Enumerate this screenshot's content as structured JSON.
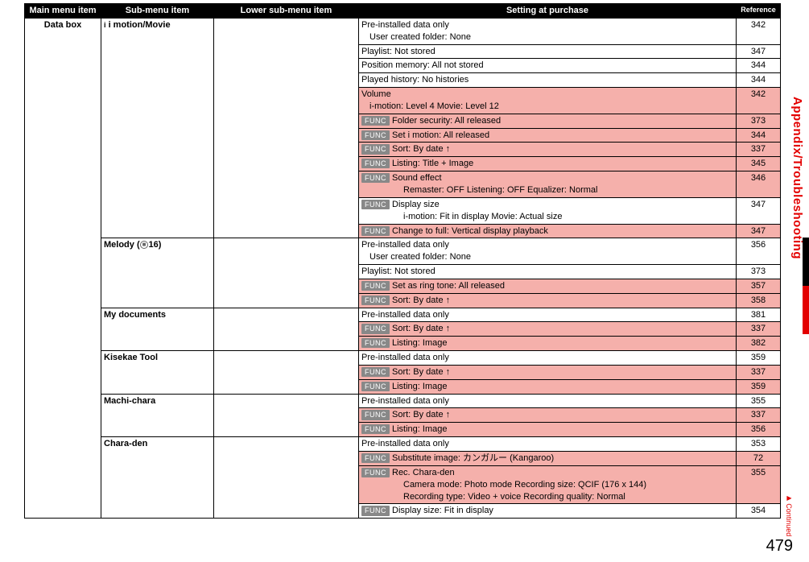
{
  "headers": {
    "main": "Main menu item",
    "sub": "Sub-menu item",
    "low": "Lower sub-menu item",
    "set": "Setting at purchase",
    "ref": "Reference"
  },
  "data_box_label": "Data box",
  "sections": [
    {
      "sub": "i motion/Movie",
      "sub_has_icon": true,
      "rows": [
        {
          "setting_lines": [
            "Pre-installed data only",
            "  User created folder: None"
          ],
          "ref": "342"
        },
        {
          "setting": "Playlist: Not stored",
          "ref": "347"
        },
        {
          "setting": "Position memory: All not stored",
          "ref": "344"
        },
        {
          "setting": "Played history: No histories",
          "ref": "344"
        },
        {
          "pink": true,
          "setting_lines": [
            "Volume",
            "  i-motion: Level 4                               Movie: Level 12"
          ],
          "ref": "342"
        },
        {
          "pink": true,
          "func": true,
          "setting": "Folder security: All released",
          "ref": "373"
        },
        {
          "pink": true,
          "func": true,
          "setting": "Set  i motion: All released",
          "ref": "344"
        },
        {
          "pink": true,
          "func": true,
          "setting": "Sort: By date ↑",
          "ref": "337"
        },
        {
          "pink": true,
          "func": true,
          "setting": "Listing: Title + Image",
          "ref": "345"
        },
        {
          "pink": true,
          "func": true,
          "setting_lines_func": [
            "Sound effect",
            "Remaster: OFF               Listening: OFF               Equalizer: Normal"
          ],
          "ref": "346"
        },
        {
          "func": true,
          "setting_lines_func": [
            "Display size",
            "i-motion: Fit in display              Movie: Actual size"
          ],
          "ref": "347"
        },
        {
          "pink": true,
          "func": true,
          "setting": "Change to full: Vertical display playback",
          "ref": "347"
        }
      ]
    },
    {
      "sub": "Melody",
      "sub_suffix": "16)",
      "sub_has_key": true,
      "rows": [
        {
          "setting_lines": [
            "Pre-installed data only",
            "  User created folder: None"
          ],
          "ref": "356"
        },
        {
          "setting": "Playlist: Not stored",
          "ref": "373"
        },
        {
          "pink": true,
          "func": true,
          "setting": "Set as ring tone: All released",
          "ref": "357"
        },
        {
          "pink": true,
          "func": true,
          "setting": "Sort: By date ↑",
          "ref": "358"
        }
      ]
    },
    {
      "sub": "My documents",
      "rows": [
        {
          "setting": "Pre-installed data only",
          "ref": "381"
        },
        {
          "pink": true,
          "func": true,
          "setting": "Sort: By date ↑",
          "ref": "337"
        },
        {
          "pink": true,
          "func": true,
          "setting": "Listing: Image",
          "ref": "382"
        }
      ]
    },
    {
      "sub": "Kisekae Tool",
      "rows": [
        {
          "setting": "Pre-installed data only",
          "ref": "359"
        },
        {
          "pink": true,
          "func": true,
          "setting": "Sort: By date ↑",
          "ref": "337"
        },
        {
          "pink": true,
          "func": true,
          "setting": "Listing: Image",
          "ref": "359"
        }
      ]
    },
    {
      "sub": "Machi-chara",
      "rows": [
        {
          "setting": "Pre-installed data only",
          "ref": "355"
        },
        {
          "pink": true,
          "func": true,
          "setting": "Sort: By date ↑",
          "ref": "337"
        },
        {
          "pink": true,
          "func": true,
          "setting": "Listing: Image",
          "ref": "356"
        }
      ]
    },
    {
      "sub": "Chara-den",
      "rows": [
        {
          "setting": "Pre-installed data only",
          "ref": "353"
        },
        {
          "pink": true,
          "func": true,
          "setting": "Substitute image: カンガルー (Kangaroo)",
          "ref": "72"
        },
        {
          "pink": true,
          "func": true,
          "setting_lines_func": [
            "Rec. Chara-den",
            "Camera mode: Photo mode                  Recording size: QCIF (176 x 144)",
            "Recording type: Video + voice                   Recording quality: Normal"
          ],
          "ref": "355"
        },
        {
          "func": true,
          "setting": "Display size: Fit in display",
          "ref": "354"
        }
      ]
    }
  ],
  "side_tab": "Appendix/Troubleshooting",
  "continued": "Continued",
  "page_num": "479",
  "func_label": "FUNC"
}
